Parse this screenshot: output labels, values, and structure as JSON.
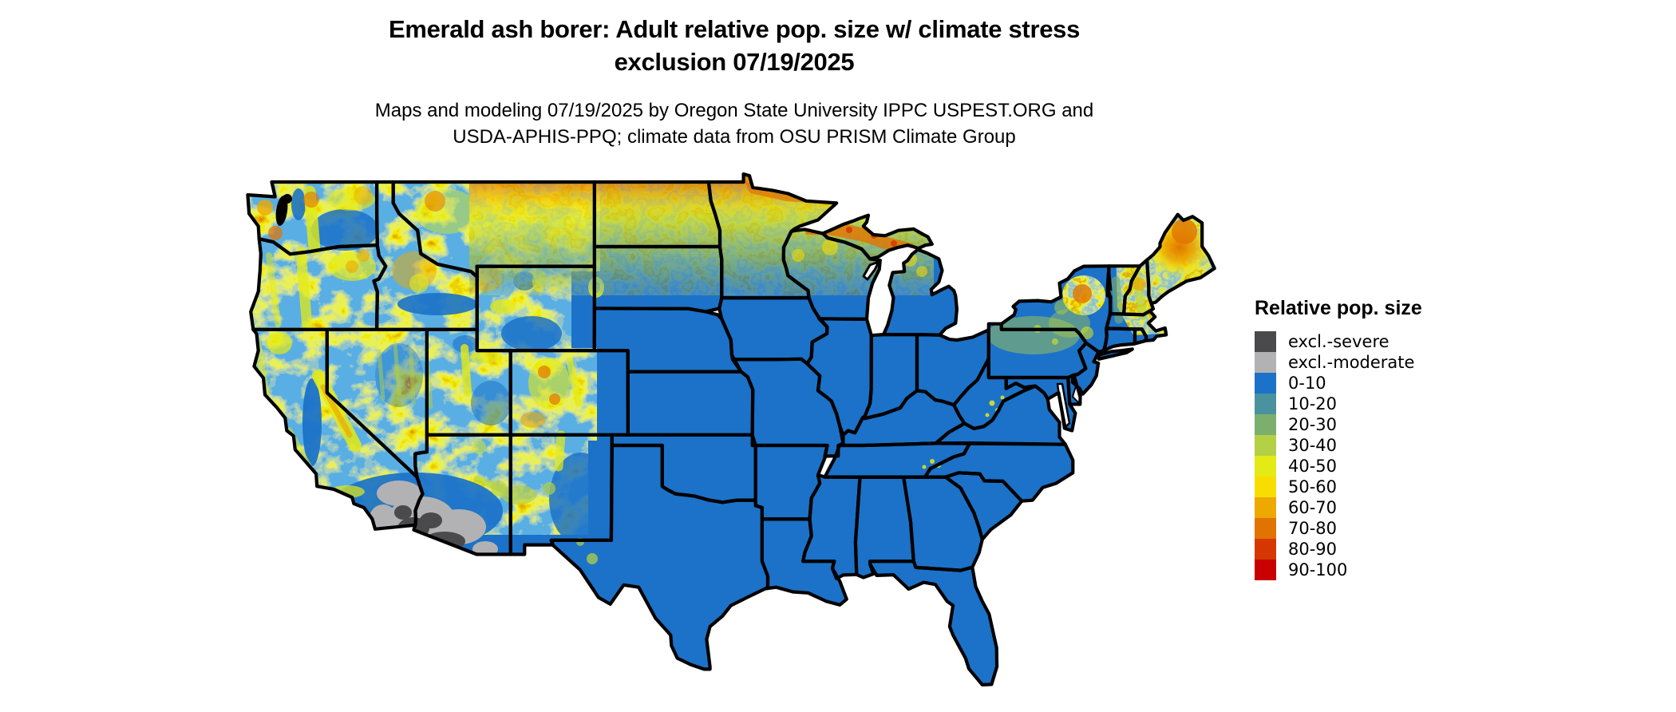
{
  "header": {
    "title_line1": "Emerald ash borer: Adult relative pop. size w/ climate stress",
    "title_line2": "exclusion 07/19/2025",
    "subtitle_line1": "Maps and modeling 07/19/2025 by Oregon State University IPPC USPEST.ORG and",
    "subtitle_line2": "USDA-APHIS-PPQ; climate data from OSU PRISM Climate Group"
  },
  "legend": {
    "title": "Relative pop. size",
    "items": [
      {
        "label": "excl.-severe",
        "color": "#4a4a4c"
      },
      {
        "label": "excl.-moderate",
        "color": "#b2b2b4"
      },
      {
        "label": "0-10",
        "color": "#1b72c8"
      },
      {
        "label": "10-20",
        "color": "#4a92a0"
      },
      {
        "label": "20-30",
        "color": "#7caf6c"
      },
      {
        "label": "30-40",
        "color": "#b4d044"
      },
      {
        "label": "40-50",
        "color": "#e3ea16"
      },
      {
        "label": "50-60",
        "color": "#f8de00"
      },
      {
        "label": "60-70",
        "color": "#eda900"
      },
      {
        "label": "70-80",
        "color": "#e17300"
      },
      {
        "label": "80-90",
        "color": "#d63700"
      },
      {
        "label": "90-100",
        "color": "#c80000"
      }
    ]
  },
  "map": {
    "land_color": "#1b72c8",
    "outline_color": "#000000",
    "background_color": "#ffffff",
    "excluded_severe_color": "#4a4a4c",
    "excluded_moderate_color": "#b2b2b4"
  }
}
